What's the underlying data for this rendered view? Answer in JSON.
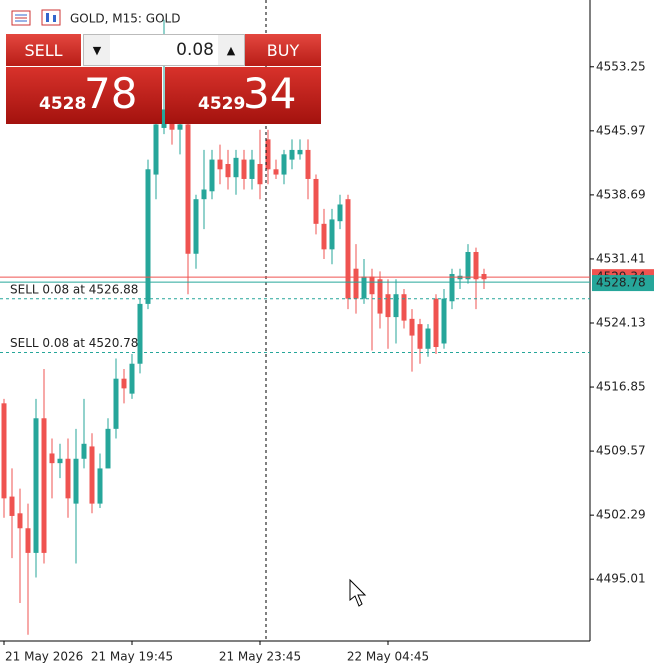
{
  "chart_data": {
    "type": "candlestick",
    "title": "GOLD, M15:  GOLD",
    "categories": [
      "21 May 2026",
      null,
      null,
      null,
      null,
      null,
      null,
      null,
      null,
      null,
      null,
      null,
      null,
      null,
      null,
      null,
      "21 May 19:45",
      null,
      null,
      null,
      null,
      null,
      null,
      null,
      null,
      null,
      null,
      null,
      null,
      null,
      null,
      null,
      "21 May 23:45",
      null,
      null,
      null,
      null,
      null,
      null,
      null,
      null,
      null,
      null,
      null,
      null,
      null,
      null,
      null,
      "22 May 04:45",
      null,
      null,
      null,
      null,
      null,
      null,
      null,
      null,
      null,
      null,
      null,
      null
    ],
    "open": [
      4515.0,
      4504.4,
      4502.5,
      4500.8,
      4498.0,
      4513.3,
      4509.3,
      4508.2,
      4508.7,
      4503.6,
      4508.7,
      4510.1,
      4503.6,
      4507.6,
      4512.1,
      4517.8,
      4516.1,
      4519.5,
      4526.3,
      4541.0,
      4546.3,
      4548.4,
      4546.1,
      4546.7,
      4532.0,
      4538.2,
      4539.1,
      4542.7,
      4542.2,
      4540.7,
      4542.7,
      4540.5,
      4542.2,
      4545.0,
      4541.6,
      4541.0,
      4542.7,
      4543.3,
      4543.8,
      4540.5,
      4535.4,
      4532.5,
      4535.7,
      4538.2,
      4530.3,
      4526.9,
      4529.4,
      4529.1,
      4527.4,
      4524.8,
      4527.4,
      4524.6,
      4524.0,
      4521.2,
      4526.9,
      4521.8,
      4526.6,
      4529.1,
      4529.1,
      4532.2,
      4529.7
    ],
    "high": [
      4515.5,
      4507.6,
      4505.3,
      4503.6,
      4515.5,
      4518.9,
      4511.0,
      4510.4,
      4511.0,
      4512.1,
      4515.5,
      4511.6,
      4509.3,
      4513.3,
      4520.1,
      4518.9,
      4520.6,
      4526.9,
      4542.7,
      4547.8,
      4558.6,
      4550.6,
      4547.8,
      4547.3,
      4538.7,
      4543.8,
      4543.8,
      4544.4,
      4543.8,
      4543.8,
      4543.8,
      4543.8,
      4546.1,
      4546.1,
      4542.7,
      4543.8,
      4545.0,
      4545.0,
      4545.0,
      4541.0,
      4537.1,
      4537.1,
      4538.7,
      4538.7,
      4533.1,
      4531.4,
      4530.3,
      4530.0,
      4529.1,
      4529.1,
      4528.0,
      4525.7,
      4524.6,
      4524.0,
      4527.4,
      4528.0,
      4530.3,
      4530.3,
      4533.1,
      4532.7,
      4530.3
    ],
    "low": [
      4502.0,
      4497.4,
      4492.3,
      4488.7,
      4495.2,
      4496.8,
      4504.2,
      4506.5,
      4502.0,
      4496.8,
      4507.6,
      4502.5,
      4503.1,
      4507.6,
      4511.0,
      4515.0,
      4515.5,
      4518.4,
      4525.7,
      4538.2,
      4545.6,
      4544.4,
      4543.3,
      4527.4,
      4530.3,
      4534.8,
      4538.2,
      4539.9,
      4539.3,
      4538.7,
      4539.3,
      4539.3,
      4538.2,
      4539.9,
      4540.5,
      4539.9,
      4541.6,
      4542.7,
      4538.2,
      4534.2,
      4531.4,
      4530.8,
      4534.8,
      4525.7,
      4525.2,
      4526.3,
      4521.0,
      4523.5,
      4521.2,
      4521.8,
      4523.5,
      4518.6,
      4519.5,
      4520.3,
      4520.6,
      4521.2,
      4525.7,
      4528.0,
      4528.6,
      4525.7,
      4528.0
    ],
    "close": [
      4504.2,
      4502.2,
      4500.8,
      4498.0,
      4513.3,
      4498.0,
      4508.2,
      4508.7,
      4504.2,
      4508.7,
      4510.4,
      4503.6,
      4507.6,
      4512.1,
      4517.8,
      4516.7,
      4519.5,
      4526.3,
      4541.6,
      4546.7,
      4548.4,
      4546.1,
      4546.7,
      4532.0,
      4538.2,
      4539.3,
      4542.7,
      4541.6,
      4540.7,
      4542.9,
      4540.5,
      4542.7,
      4539.9,
      4541.6,
      4541.0,
      4543.3,
      4543.8,
      4543.8,
      4540.5,
      4535.4,
      4532.5,
      4535.9,
      4537.6,
      4526.9,
      4526.9,
      4529.4,
      4527.4,
      4525.2,
      4524.8,
      4527.4,
      4524.4,
      4522.7,
      4521.2,
      4523.5,
      4521.4,
      4526.9,
      4529.7,
      4529.5,
      4532.2,
      4529.1,
      4529.1
    ],
    "up_color": "#26a69a",
    "down_color": "#ef5350",
    "ylim": [
      4488.1,
      4560.84
    ],
    "yticks": [
      4495.01,
      4502.29,
      4509.57,
      4516.85,
      4524.13,
      4531.41,
      4538.69,
      4545.97,
      4553.25
    ],
    "bid": 4528.78,
    "ask": 4529.34,
    "orders": [
      {
        "label": "SELL 0.08 at 4526.88",
        "price": 4526.88
      },
      {
        "label": "SELL 0.08 at 4520.78",
        "price": 4520.78
      }
    ]
  },
  "trade_panel": {
    "sell": "SELL",
    "buy": "BUY",
    "volume": "0.08",
    "sell_price": {
      "big_figure": "4528",
      "pips": "78"
    },
    "buy_price": {
      "big_figure": "4529",
      "pips": "34"
    }
  }
}
